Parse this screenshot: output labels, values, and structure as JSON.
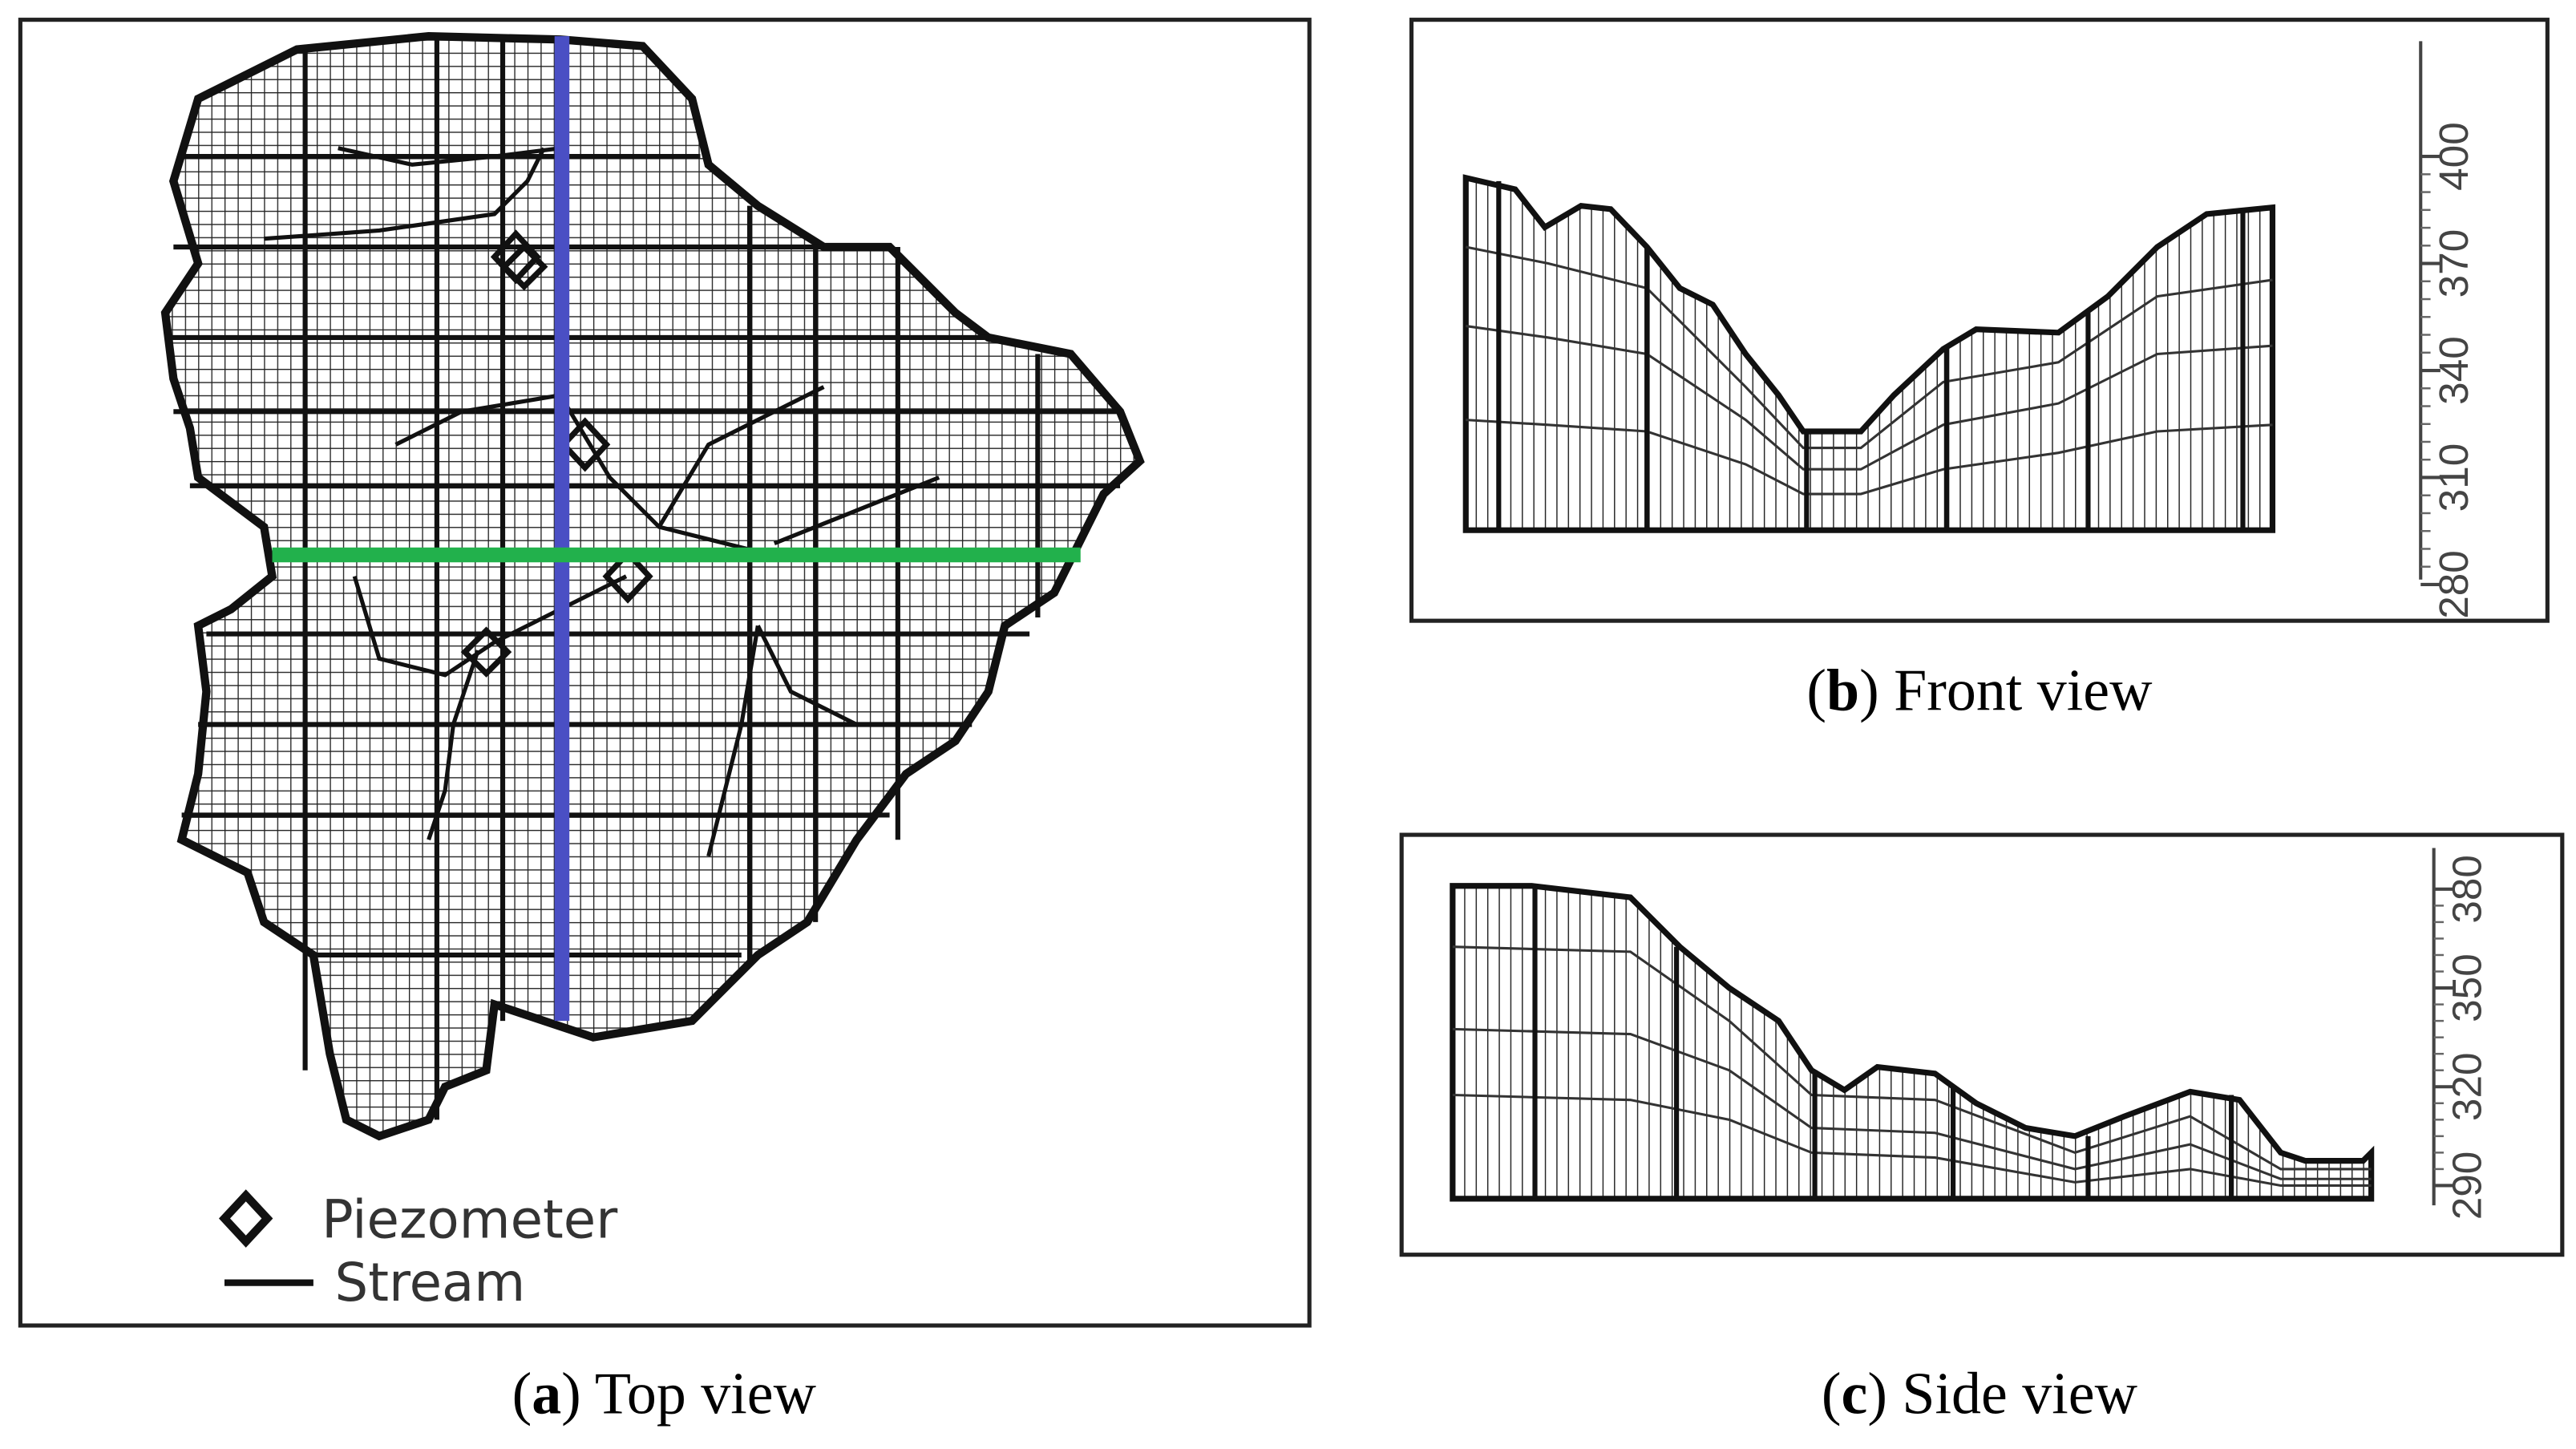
{
  "panels": [
    {
      "caption": [
        "(",
        "a",
        ") Top view"
      ],
      "legend": [
        "Piezometer",
        "Stream"
      ]
    },
    {
      "caption": [
        "(",
        "b",
        ") Front view"
      ],
      "ticks": [
        280,
        310,
        340,
        370,
        400
      ]
    },
    {
      "caption": [
        "(",
        "c",
        ") Side view"
      ],
      "ticks": [
        290,
        320,
        350,
        380
      ]
    }
  ]
}
